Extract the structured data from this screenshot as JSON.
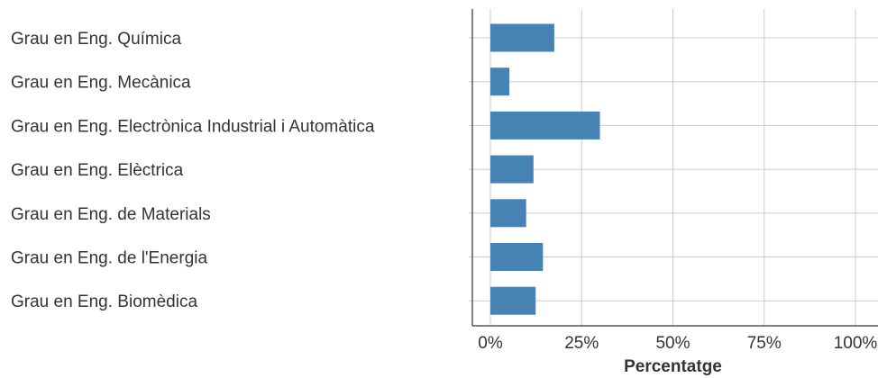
{
  "chart_data": {
    "type": "bar",
    "orientation": "horizontal",
    "categories": [
      "Grau en Eng. Química",
      "Grau en Eng. Mecànica",
      "Grau en Eng. Electrònica Industrial i Automàtica",
      "Grau en Eng. Elèctrica",
      "Grau en Eng. de Materials",
      "Grau en Eng. de l'Energia",
      "Grau en Eng. Biomèdica"
    ],
    "values": [
      17.5,
      5.2,
      30.0,
      11.8,
      9.8,
      14.4,
      12.4
    ],
    "xlabel": "Percentatge",
    "ylabel": "",
    "xlim": [
      0,
      100
    ],
    "x_ticks": [
      0,
      25,
      50,
      75,
      100
    ],
    "x_tick_labels": [
      "0%",
      "25%",
      "50%",
      "75%",
      "100%"
    ],
    "grid": true,
    "bar_color": "#4682b4"
  }
}
